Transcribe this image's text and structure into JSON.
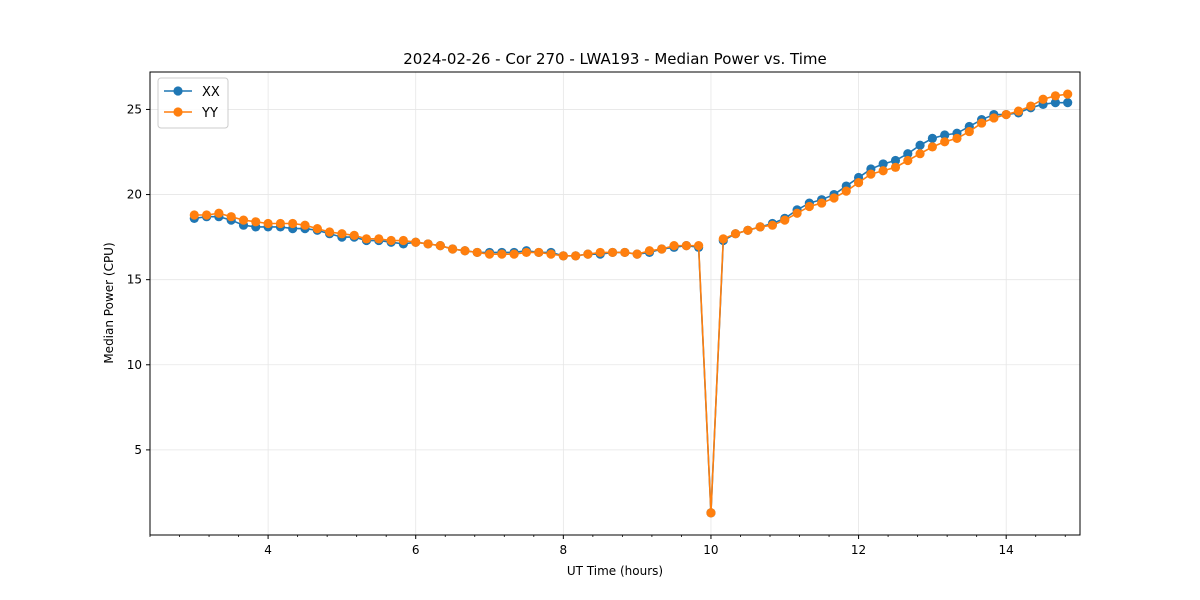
{
  "chart_data": {
    "type": "line",
    "title": "2024-02-26 - Cor 270 - LWA193 - Median Power vs. Time",
    "xlabel": "UT Time (hours)",
    "ylabel": "Median Power (CPU)",
    "xlim": [
      2.4,
      15.0
    ],
    "ylim": [
      0.0,
      27.2
    ],
    "xticks": [
      4,
      6,
      8,
      10,
      12,
      14
    ],
    "yticks": [
      5,
      10,
      15,
      20,
      25
    ],
    "grid": true,
    "legend_position": "upper-left",
    "x": [
      3.0,
      3.167,
      3.333,
      3.5,
      3.667,
      3.833,
      4.0,
      4.167,
      4.333,
      4.5,
      4.667,
      4.833,
      5.0,
      5.167,
      5.333,
      5.5,
      5.667,
      5.833,
      6.0,
      6.167,
      6.333,
      6.5,
      6.667,
      6.833,
      7.0,
      7.167,
      7.333,
      7.5,
      7.667,
      7.833,
      8.0,
      8.167,
      8.333,
      8.5,
      8.667,
      8.833,
      9.0,
      9.167,
      9.333,
      9.5,
      9.667,
      9.833,
      10.0,
      10.167,
      10.333,
      10.5,
      10.667,
      10.833,
      11.0,
      11.167,
      11.333,
      11.5,
      11.667,
      11.833,
      12.0,
      12.167,
      12.333,
      12.5,
      12.667,
      12.833,
      13.0,
      13.167,
      13.333,
      13.5,
      13.667,
      13.833,
      14.0,
      14.167,
      14.333,
      14.5,
      14.667,
      14.833
    ],
    "series": [
      {
        "name": "XX",
        "color": "#1f77b4",
        "values": [
          18.6,
          18.7,
          18.7,
          18.5,
          18.2,
          18.1,
          18.1,
          18.1,
          18.0,
          18.0,
          17.9,
          17.7,
          17.5,
          17.5,
          17.3,
          17.3,
          17.2,
          17.1,
          17.2,
          17.1,
          17.0,
          16.8,
          16.7,
          16.6,
          16.6,
          16.6,
          16.6,
          16.7,
          16.6,
          16.6,
          16.4,
          16.4,
          16.5,
          16.5,
          16.6,
          16.6,
          16.5,
          16.6,
          16.8,
          16.9,
          17.0,
          16.9,
          1.3,
          17.3,
          17.7,
          17.9,
          18.1,
          18.3,
          18.6,
          19.1,
          19.5,
          19.7,
          20.0,
          20.5,
          21.0,
          21.5,
          21.8,
          22.0,
          22.4,
          22.9,
          23.3,
          23.5,
          23.6,
          24.0,
          24.4,
          24.7,
          24.7,
          24.8,
          25.1,
          25.3,
          25.4,
          25.4
        ]
      },
      {
        "name": "YY",
        "color": "#ff7f0e",
        "values": [
          18.8,
          18.8,
          18.9,
          18.7,
          18.5,
          18.4,
          18.3,
          18.3,
          18.3,
          18.2,
          18.0,
          17.8,
          17.7,
          17.6,
          17.4,
          17.4,
          17.3,
          17.3,
          17.2,
          17.1,
          17.0,
          16.8,
          16.7,
          16.6,
          16.5,
          16.5,
          16.5,
          16.6,
          16.6,
          16.5,
          16.4,
          16.4,
          16.5,
          16.6,
          16.6,
          16.6,
          16.5,
          16.7,
          16.8,
          17.0,
          17.0,
          17.0,
          1.3,
          17.4,
          17.7,
          17.9,
          18.1,
          18.2,
          18.5,
          18.9,
          19.3,
          19.5,
          19.8,
          20.2,
          20.7,
          21.2,
          21.4,
          21.6,
          22.0,
          22.4,
          22.8,
          23.1,
          23.3,
          23.7,
          24.2,
          24.5,
          24.7,
          24.9,
          25.2,
          25.6,
          25.8,
          25.9
        ]
      }
    ]
  }
}
